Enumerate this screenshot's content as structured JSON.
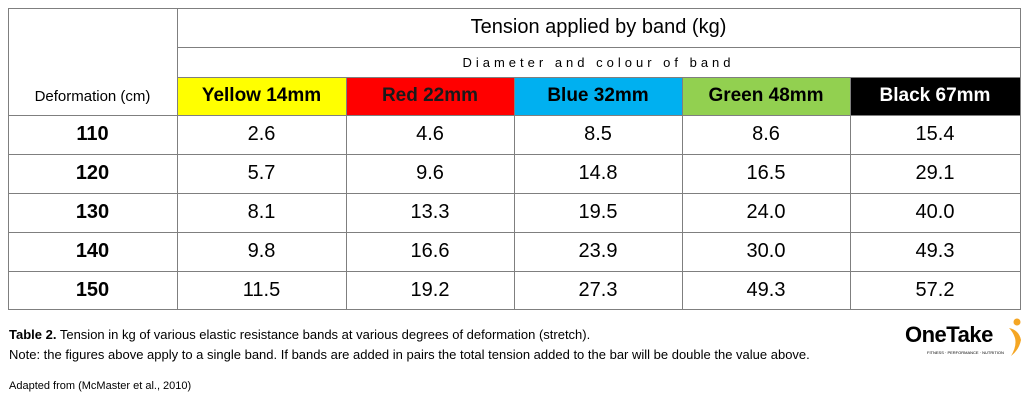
{
  "table": {
    "title": "Tension applied by band (kg)",
    "subtitle": "Diameter and colour of band",
    "row_header": "Deformation (cm)",
    "columns": [
      {
        "label": "Yellow 14mm",
        "color": "#ffff00",
        "text_color": "#000000"
      },
      {
        "label": "Red 22mm",
        "color": "#ff0000",
        "text_color": "#1a1a1a"
      },
      {
        "label": "Blue 32mm",
        "color": "#00b0f0",
        "text_color": "#000000"
      },
      {
        "label": "Green 48mm",
        "color": "#92d050",
        "text_color": "#000000"
      },
      {
        "label": "Black 67mm",
        "color": "#000000",
        "text_color": "#ffffff"
      }
    ],
    "rows": [
      [
        "110",
        "2.6",
        "4.6",
        "8.5",
        "8.6",
        "15.4"
      ],
      [
        "120",
        "5.7",
        "9.6",
        "14.8",
        "16.5",
        "29.1"
      ],
      [
        "130",
        "8.1",
        "13.3",
        "19.5",
        "24.0",
        "40.0"
      ],
      [
        "140",
        "9.8",
        "16.6",
        "23.9",
        "30.0",
        "49.3"
      ],
      [
        "150",
        "11.5",
        "19.2",
        "27.3",
        "49.3",
        "57.2"
      ]
    ]
  },
  "caption": {
    "label": "Table 2.",
    "text": "Tension in kg of various elastic resistance bands at various degrees of deformation  (stretch).",
    "note": "Note: the figures above apply to a single band. If bands are added in pairs the total tension added to the bar will be double the value above.",
    "source": "Adapted from (McMaster et al., 2010)"
  },
  "logo": {
    "name": "OneTake",
    "tagline": "FITNESS · PERFORMANCE · NUTRITION"
  }
}
